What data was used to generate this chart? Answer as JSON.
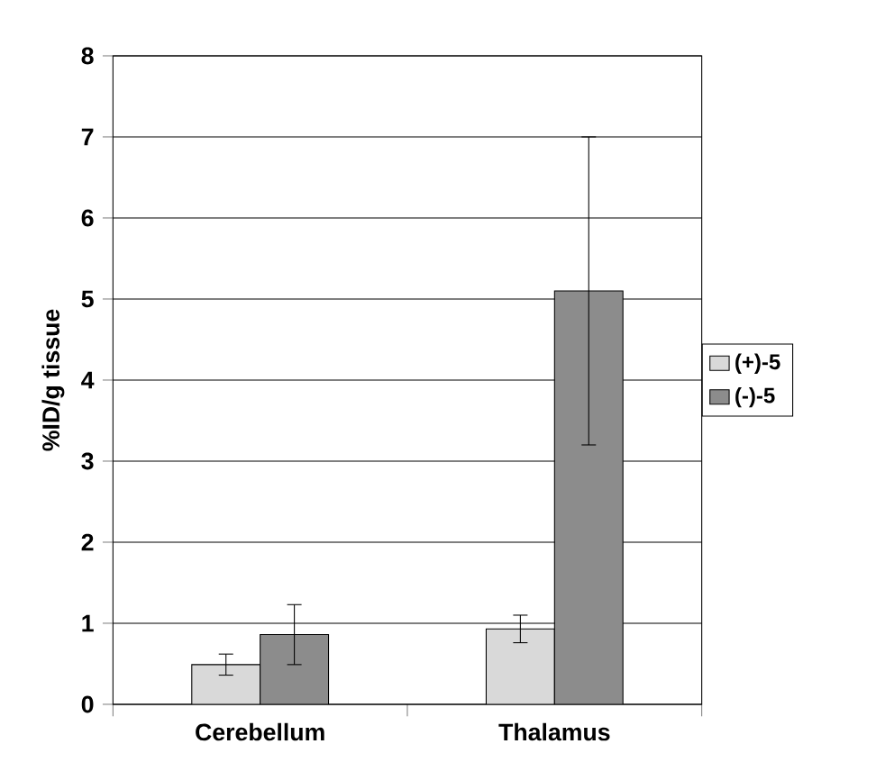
{
  "chart_data": {
    "type": "bar",
    "ylabel": "%ID/g tissue",
    "categories": [
      "Cerebellum",
      "Thalamus"
    ],
    "series": [
      {
        "name": "(+)-5",
        "color": "#d9d9d9",
        "values": [
          0.49,
          0.93
        ],
        "errors": [
          0.13,
          0.17
        ]
      },
      {
        "name": "(-)-5",
        "color": "#8c8c8c",
        "values": [
          0.86,
          5.1
        ],
        "errors": [
          0.37,
          1.9
        ]
      }
    ],
    "ylim": [
      0,
      8
    ],
    "yticks": [
      0,
      1,
      2,
      3,
      4,
      5,
      6,
      7,
      8
    ],
    "grid": "y",
    "legend": "right"
  }
}
